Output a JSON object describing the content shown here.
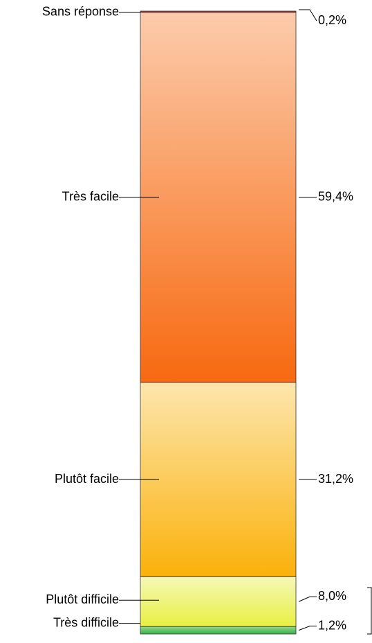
{
  "chart_data": {
    "type": "bar",
    "stacked": true,
    "ylim": [
      0,
      100
    ],
    "series": [
      {
        "name": "Très difficile",
        "color": "#3cb043",
        "gradient": [
          "#8fd88f",
          "#3cb043"
        ],
        "values": [
          1.2
        ],
        "value_labels": [
          "1,2%"
        ]
      },
      {
        "name": "Plutôt difficile",
        "color": "#e8f040",
        "gradient": [
          "#f5f8b8",
          "#e8f040"
        ],
        "values": [
          8.0
        ],
        "value_labels": [
          "8,0%"
        ]
      },
      {
        "name": "Plutôt facile",
        "color": "#fbb10a",
        "gradient": [
          "#fde6ae",
          "#fbb10a"
        ],
        "values": [
          31.2
        ],
        "value_labels": [
          "31,2%"
        ]
      },
      {
        "name": "Très facile",
        "color": "#f76910",
        "gradient": [
          "#fccbab",
          "#f76910"
        ],
        "values": [
          59.4
        ],
        "value_labels": [
          "59,4%"
        ]
      },
      {
        "name": "Sans réponse",
        "color": "#c0302a",
        "gradient": [
          "#c0302a",
          "#c0302a"
        ],
        "values": [
          0.2
        ],
        "value_labels": [
          "0,2%"
        ]
      }
    ]
  }
}
